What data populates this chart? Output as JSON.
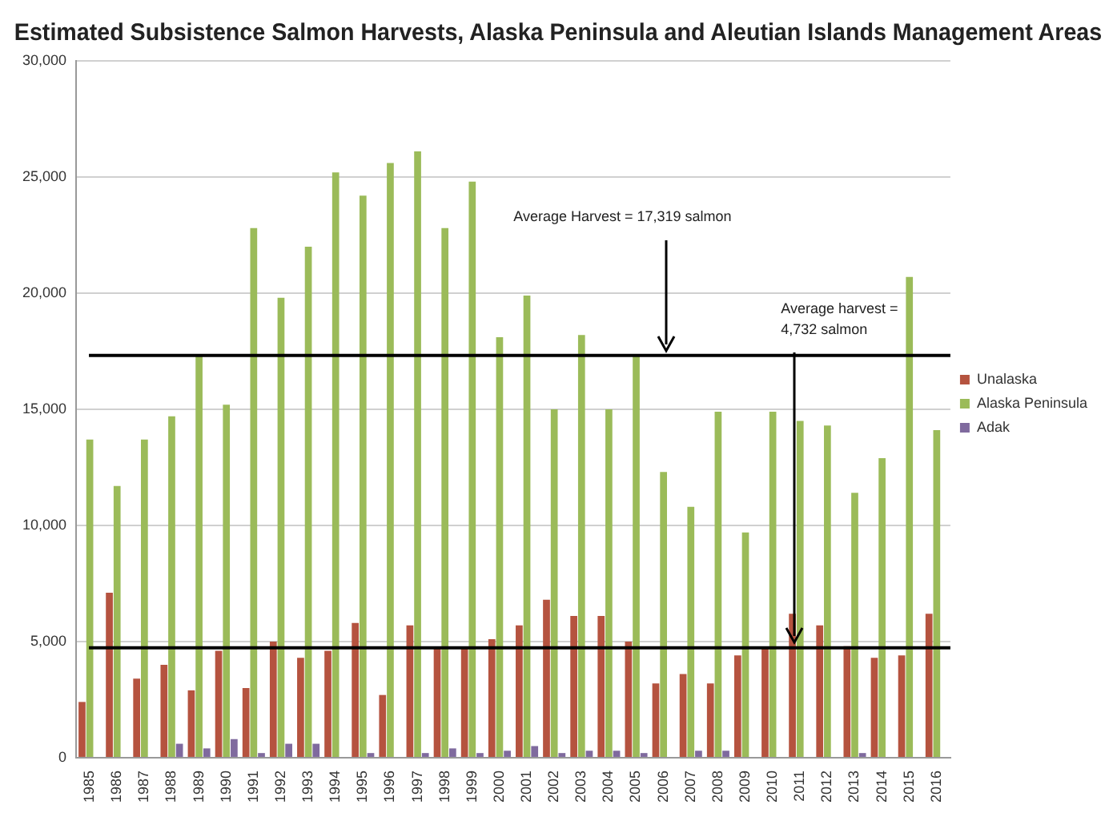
{
  "chart_data": {
    "type": "bar",
    "title": "Estimated Subsistence Salmon Harvests, Alaska Peninsula and Aleutian Islands Management Areas",
    "categories": [
      "1985",
      "1986",
      "1987",
      "1988",
      "1989",
      "1990",
      "1991",
      "1992",
      "1993",
      "1994",
      "1995",
      "1996",
      "1997",
      "1998",
      "1999",
      "2000",
      "2001",
      "2002",
      "2003",
      "2004",
      "2005",
      "2006",
      "2007",
      "2008",
      "2009",
      "2010",
      "2011",
      "2012",
      "2013",
      "2014",
      "2015",
      "2016"
    ],
    "series": [
      {
        "name": "Unalaska",
        "color": "#b5533f",
        "values": [
          2400,
          7100,
          3400,
          4000,
          2900,
          4600,
          3000,
          5000,
          4300,
          4600,
          5800,
          2700,
          5700,
          4700,
          4700,
          5100,
          5700,
          6800,
          6100,
          6100,
          5000,
          3200,
          3600,
          3200,
          4400,
          4700,
          6200,
          5700,
          4800,
          4300,
          4400,
          6200
        ]
      },
      {
        "name": "Alaska Peninsula",
        "color": "#9bbb59",
        "values": [
          13700,
          11700,
          13700,
          14700,
          17300,
          15200,
          22800,
          19800,
          22000,
          25200,
          24200,
          25600,
          26100,
          22800,
          24800,
          18100,
          19900,
          15000,
          18200,
          15000,
          17300,
          12300,
          10800,
          14900,
          9700,
          14900,
          14500,
          14300,
          11400,
          12900,
          20700,
          14100
        ]
      },
      {
        "name": "Adak",
        "color": "#7f6a9e",
        "values": [
          0,
          0,
          0,
          600,
          400,
          800,
          200,
          600,
          600,
          0,
          200,
          0,
          200,
          400,
          200,
          300,
          500,
          200,
          300,
          300,
          200,
          0,
          300,
          300,
          0,
          0,
          0,
          0,
          200,
          0,
          0,
          0
        ]
      }
    ],
    "ylim": [
      0,
      30000
    ],
    "yticks": [
      {
        "value": 0,
        "label": "0"
      },
      {
        "value": 5000,
        "label": "5,000"
      },
      {
        "value": 10000,
        "label": "10,000"
      },
      {
        "value": 15000,
        "label": "15,000"
      },
      {
        "value": 20000,
        "label": "20,000"
      },
      {
        "value": 25000,
        "label": "25,000"
      },
      {
        "value": 30000,
        "label": "30,000"
      }
    ],
    "ref_lines": [
      {
        "axis": "y",
        "value": 17319,
        "label": "Average Harvest = 17,319 salmon",
        "color": "#000000"
      },
      {
        "axis": "y",
        "value": 4732,
        "label": "Average harvest = 4,732 salmon",
        "color": "#000000"
      }
    ],
    "grid": "y",
    "legend": "right"
  }
}
